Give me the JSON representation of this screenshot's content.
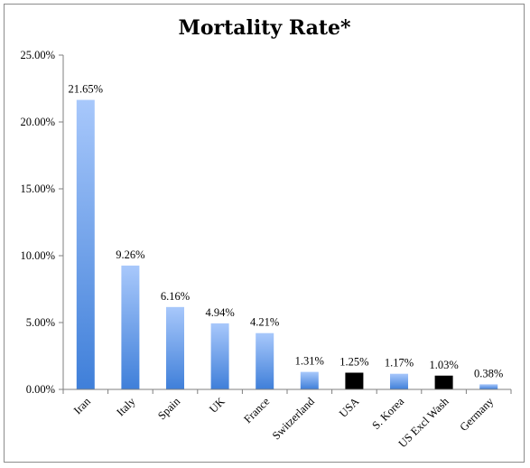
{
  "chart_data": {
    "type": "bar",
    "title": "Mortality Rate*",
    "xlabel": "",
    "ylabel": "",
    "categories": [
      "Iran",
      "Italy",
      "Spain",
      "UK",
      "France",
      "Switzerland",
      "USA",
      "S. Korea",
      "US Excl Wash",
      "Germany"
    ],
    "values": [
      21.65,
      9.26,
      6.16,
      4.94,
      4.21,
      1.31,
      1.25,
      1.17,
      1.03,
      0.38
    ],
    "data_labels": [
      "21.65%",
      "9.26%",
      "6.16%",
      "4.94%",
      "4.21%",
      "1.31%",
      "1.25%",
      "1.17%",
      "1.03%",
      "0.38%"
    ],
    "y_ticks": [
      0,
      5,
      10,
      15,
      20,
      25
    ],
    "y_tick_labels": [
      "0.00%",
      "5.00%",
      "10.00%",
      "15.00%",
      "20.00%",
      "25.00%"
    ],
    "ylim": [
      0,
      25
    ],
    "grid": false,
    "legend": "none",
    "colors": {
      "default_bar_top": "#a8c8fb",
      "default_bar_bottom": "#3f7fd9",
      "highlight_bar": "#000000",
      "axis": "#7f7f7f"
    },
    "highlighted_categories": [
      "USA",
      "US Excl Wash"
    ]
  }
}
